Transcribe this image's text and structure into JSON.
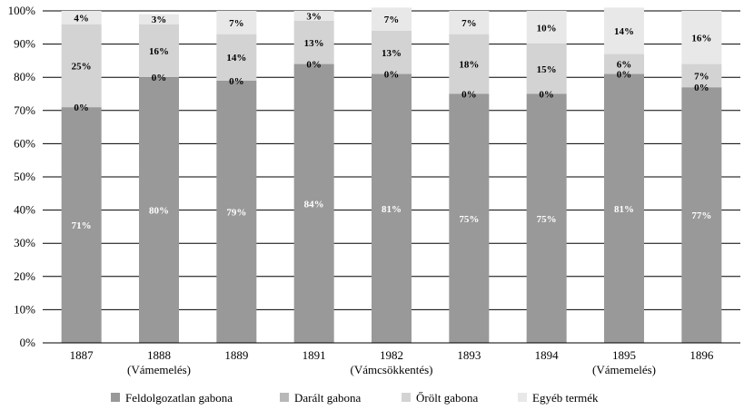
{
  "chart_data": {
    "type": "bar",
    "stacked": true,
    "categories": [
      "1887",
      "1888",
      "1889",
      "1891",
      "1982",
      "1893",
      "1894",
      "1895",
      "1896"
    ],
    "category_notes": [
      "",
      "(Vámemelés)",
      "",
      "",
      "(Vámcsökkentés)",
      "",
      "",
      "(Vámemelés)",
      ""
    ],
    "series": [
      {
        "name": "Feldolgozatlan gabona",
        "color": "#999999",
        "label_color": "#ffffff",
        "values": [
          71,
          80,
          79,
          84,
          81,
          75,
          75,
          81,
          77
        ],
        "labels": [
          "71%",
          "80%",
          "79%",
          "84%",
          "81%",
          "75%",
          "75%",
          "81%",
          "77%"
        ]
      },
      {
        "name": "Darált gabona",
        "color": "#b8b8b8",
        "label_color": "#000000",
        "values": [
          0,
          0,
          0,
          0,
          0,
          0,
          0,
          0,
          0
        ],
        "labels": [
          "0%",
          "0%",
          "0%",
          "0%",
          "0%",
          "0%",
          "0%",
          "0%",
          "0%"
        ]
      },
      {
        "name": "Őrölt gabona",
        "color": "#d3d3d3",
        "label_color": "#000000",
        "values": [
          25,
          16,
          14,
          13,
          13,
          18,
          15,
          6,
          7
        ],
        "labels": [
          "25%",
          "16%",
          "14%",
          "13%",
          "13%",
          "18%",
          "15%",
          "6%",
          "7%"
        ]
      },
      {
        "name": "Egyéb termék",
        "color": "#e8e8e8",
        "label_color": "#000000",
        "values": [
          4,
          3,
          7,
          3,
          7,
          7,
          10,
          14,
          16
        ],
        "labels": [
          "4%",
          "3%",
          "7%",
          "3%",
          "7%",
          "7%",
          "10%",
          "14%",
          "16%"
        ]
      }
    ],
    "ylim": [
      0,
      100
    ],
    "yticks": [
      "0%",
      "10%",
      "20%",
      "30%",
      "40%",
      "50%",
      "60%",
      "70%",
      "80%",
      "90%",
      "100%"
    ],
    "grid": true,
    "legend": "bottom"
  }
}
